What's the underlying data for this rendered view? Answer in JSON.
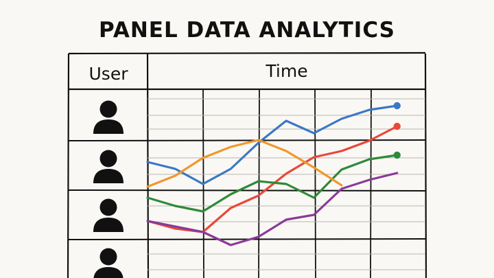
{
  "title": "PANEL DATA ANALYTICS",
  "table": {
    "user_header": "User",
    "time_header": "Time",
    "user_rows": 4,
    "time_columns": 5
  },
  "icons": {
    "user": "person-silhouette-icon"
  },
  "colors": {
    "line": "#111111",
    "background": "#faf8f4",
    "series": [
      "#3b78c4",
      "#e8483a",
      "#2e8a3a",
      "#f0972f",
      "#8a3a9a"
    ]
  },
  "chart_data": {
    "type": "line",
    "y_scale": "inverted",
    "x": [
      0,
      1,
      2,
      3,
      4,
      5,
      6,
      7,
      8,
      9,
      10
    ],
    "series": [
      {
        "color": "#3b78c4",
        "values": [
          -236,
          -246,
          -268,
          -246,
          -208,
          -176,
          -194,
          -173,
          -160,
          -154,
          null
        ]
      },
      {
        "color": "#e8483a",
        "values": [
          -322,
          -333,
          -338,
          -303,
          -285,
          -253,
          -229,
          -220,
          -205,
          -184,
          null
        ]
      },
      {
        "color": "#2e8a3a",
        "values": [
          -288,
          -300,
          -308,
          -283,
          -264,
          -268,
          -288,
          -247,
          -232,
          -226,
          null
        ]
      },
      {
        "color": "#f0972f",
        "values": [
          -272,
          -256,
          -230,
          -214,
          -204,
          -220,
          -244,
          -270,
          null,
          null,
          null
        ]
      },
      {
        "color": "#8a3a9a",
        "values": [
          -322,
          -330,
          -338,
          -357,
          -345,
          -320,
          -313,
          -275,
          -262,
          -252,
          null
        ]
      }
    ],
    "endpoint_markers": [
      0,
      1,
      2
    ]
  }
}
